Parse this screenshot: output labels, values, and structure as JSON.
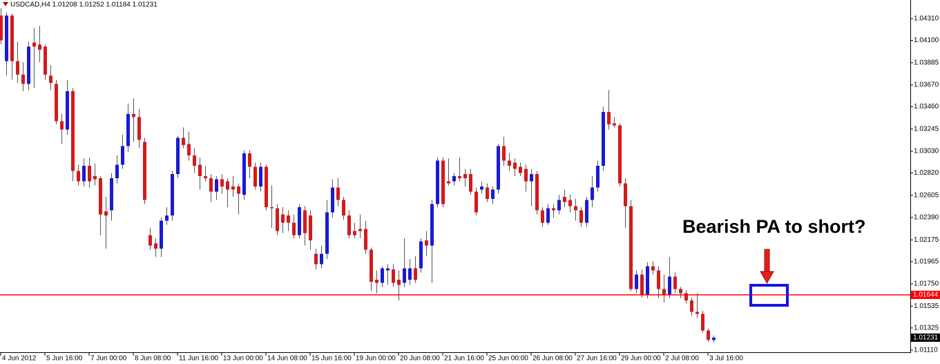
{
  "chart_data": {
    "type": "candlestick",
    "title": "USDCAD,H4  1.01208 1.01252 1.01184 1.01231",
    "annotation": "Bearish PA to short?",
    "up_color": "#1a1ad6",
    "down_color": "#d41a1a",
    "wick_color": "#555555",
    "categories": [
      "4 Jun 2012",
      null,
      null,
      null,
      null,
      null,
      null,
      null,
      "5 Jun 16:00",
      null,
      null,
      null,
      null,
      null,
      null,
      null,
      "7 Jun 00:00",
      null,
      null,
      null,
      null,
      null,
      null,
      null,
      "8 Jun 08:00",
      null,
      null,
      null,
      null,
      null,
      null,
      null,
      "11 Jun 16:00",
      null,
      null,
      null,
      null,
      null,
      null,
      null,
      "13 Jun 00:00",
      null,
      null,
      null,
      null,
      null,
      null,
      null,
      "14 Jun 08:00",
      null,
      null,
      null,
      null,
      null,
      null,
      null,
      "15 Jun 16:00",
      null,
      null,
      null,
      null,
      null,
      null,
      null,
      "19 Jun 00:00",
      null,
      null,
      null,
      null,
      null,
      null,
      null,
      "20 Jun 08:00",
      null,
      null,
      null,
      null,
      null,
      null,
      null,
      "21 Jun 16:00",
      null,
      null,
      null,
      null,
      null,
      null,
      null,
      "25 Jun 00:00",
      null,
      null,
      null,
      null,
      null,
      null,
      null,
      "26 Jun 08:00",
      null,
      null,
      null,
      null,
      null,
      null,
      null,
      "27 Jun 16:00",
      null,
      null,
      null,
      null,
      null,
      null,
      null,
      "29 Jun 00:00",
      null,
      null,
      null,
      null,
      null,
      null,
      null,
      "2 Jul 08:00",
      null,
      null,
      null,
      null,
      null,
      null,
      null,
      "3 Jul 16:00",
      null
    ],
    "open": [
      1.0434,
      1.039,
      1.0434,
      1.039,
      1.0377,
      1.0368,
      1.0408,
      1.0406,
      1.0404,
      1.0376,
      1.0368,
      1.0332,
      1.0324,
      1.0361,
      1.0284,
      1.0274,
      1.0289,
      1.0279,
      1.0277,
      1.0245,
      1.0246,
      1.0277,
      1.029,
      1.0308,
      1.0339,
      1.0336,
      1.0312,
      1.0222,
      1.0214,
      1.0209,
      1.0236,
      1.0241,
      1.0281,
      1.0316,
      1.031,
      1.0299,
      1.029,
      1.0279,
      1.0277,
      1.0264,
      1.0276,
      1.0274,
      1.0269,
      1.0269,
      1.0261,
      1.0301,
      1.0288,
      1.0269,
      1.0288,
      1.0249,
      1.0248,
      1.0242,
      1.0241,
      1.0234,
      1.0222,
      1.0246,
      1.0241,
      1.0204,
      1.0194,
      1.0204,
      1.0244,
      1.0268,
      1.0256,
      1.0241,
      1.0226,
      1.0228,
      1.0228,
      1.0208,
      1.0179,
      1.0176,
      1.0188,
      1.0189,
      1.0179,
      1.0176,
      1.0179,
      1.019,
      1.019,
      1.0217,
      1.0212,
      1.0252,
      1.0294,
      1.0274,
      1.0274,
      1.0279,
      1.0281,
      1.0281,
      1.0264,
      1.0266,
      1.0268,
      1.0257,
      1.0266,
      1.0308,
      1.0294,
      1.0292,
      1.0288,
      1.0286,
      1.0274,
      1.0281,
      1.0246,
      1.0234,
      1.0248,
      1.0246,
      1.0259,
      1.0256,
      1.025,
      1.0246,
      1.0234,
      1.0256,
      1.0268,
      1.0289,
      1.0341,
      1.033,
      1.0328,
      1.0272,
      1.025,
      1.017,
      1.0184,
      1.0164,
      1.0192,
      1.0188,
      1.017,
      1.0164,
      1.0182,
      1.017,
      1.0166,
      1.0159,
      1.0148,
      1.0146,
      1.013,
      1.01208
    ],
    "high": [
      1.0441,
      1.0437,
      1.0436,
      1.0409,
      1.0389,
      1.0409,
      1.0422,
      1.0424,
      1.0406,
      1.0386,
      1.0372,
      1.0339,
      1.0372,
      1.0364,
      1.029,
      1.0296,
      1.0297,
      1.0291,
      1.0279,
      1.0259,
      1.0282,
      1.0299,
      1.0319,
      1.0349,
      1.0354,
      1.0344,
      1.0316,
      1.0229,
      1.0219,
      1.0239,
      1.0249,
      1.0284,
      1.0318,
      1.0326,
      1.0322,
      1.0306,
      1.0297,
      1.0289,
      1.0281,
      1.0279,
      1.0281,
      1.0277,
      1.0279,
      1.0272,
      1.0304,
      1.0304,
      1.0292,
      1.0292,
      1.029,
      1.027,
      1.0252,
      1.0249,
      1.0246,
      1.0242,
      1.0252,
      1.025,
      1.0246,
      1.0209,
      1.0212,
      1.0256,
      1.0276,
      1.0277,
      1.0259,
      1.0246,
      1.0234,
      1.0242,
      1.0236,
      1.021,
      1.0188,
      1.0192,
      1.0194,
      1.0194,
      1.0188,
      1.0219,
      1.0199,
      1.0202,
      1.0219,
      1.0226,
      1.0256,
      1.0297,
      1.0297,
      1.0296,
      1.0282,
      1.0297,
      1.0286,
      1.0286,
      1.0268,
      1.0274,
      1.0272,
      1.0269,
      1.031,
      1.0317,
      1.0301,
      1.0296,
      1.0292,
      1.029,
      1.0286,
      1.0284,
      1.0249,
      1.0252,
      1.0252,
      1.0261,
      1.0266,
      1.0261,
      1.0257,
      1.0249,
      1.0259,
      1.0279,
      1.0294,
      1.0346,
      1.0362,
      1.0336,
      1.033,
      1.0277,
      1.0256,
      1.0188,
      1.0189,
      1.0196,
      1.0197,
      1.0192,
      1.0184,
      1.0201,
      1.0186,
      1.0172,
      1.0169,
      1.0162,
      1.0166,
      1.0149,
      1.0132,
      1.01252
    ],
    "low": [
      1.0406,
      1.0376,
      1.0372,
      1.0369,
      1.0361,
      1.0362,
      1.0364,
      1.0389,
      1.0372,
      1.0362,
      1.0329,
      1.031,
      1.0319,
      1.0274,
      1.027,
      1.0269,
      1.0268,
      1.027,
      1.0222,
      1.0209,
      1.0236,
      1.0272,
      1.0286,
      1.0302,
      1.0312,
      1.0306,
      1.0252,
      1.0208,
      1.0201,
      1.0201,
      1.0232,
      1.0236,
      1.0277,
      1.0306,
      1.0294,
      1.0282,
      1.0266,
      1.0274,
      1.0254,
      1.0256,
      1.0262,
      1.0249,
      1.0259,
      1.0242,
      1.0256,
      1.0277,
      1.0266,
      1.0264,
      1.0246,
      1.0229,
      1.0222,
      1.0224,
      1.0226,
      1.0219,
      1.0219,
      1.0212,
      1.0208,
      1.0189,
      1.019,
      1.0199,
      1.0239,
      1.025,
      1.0237,
      1.0219,
      1.0219,
      1.0219,
      1.0204,
      1.0168,
      1.0166,
      1.0172,
      1.0174,
      1.0172,
      1.0159,
      1.0172,
      1.0174,
      1.0176,
      1.0186,
      1.0202,
      1.0176,
      1.0249,
      1.0249,
      1.027,
      1.027,
      1.0274,
      1.0269,
      1.0261,
      1.0241,
      1.0262,
      1.0254,
      1.0252,
      1.0262,
      1.0289,
      1.0284,
      1.0279,
      1.0279,
      1.0264,
      1.025,
      1.0242,
      1.023,
      1.0232,
      1.0239,
      1.0242,
      1.0249,
      1.0244,
      1.0236,
      1.023,
      1.023,
      1.0249,
      1.0264,
      1.0284,
      1.0324,
      1.0326,
      1.0269,
      1.0229,
      1.0168,
      1.0166,
      1.0162,
      1.0161,
      1.0184,
      1.0161,
      1.0157,
      1.0161,
      1.0166,
      1.0161,
      1.0156,
      1.0144,
      1.0142,
      1.0128,
      1.0119,
      1.01184
    ],
    "close": [
      1.041,
      1.0434,
      1.039,
      1.0377,
      1.0368,
      1.0404,
      1.0404,
      1.0401,
      1.0377,
      1.0369,
      1.0332,
      1.0324,
      1.0361,
      1.0284,
      1.0274,
      1.0289,
      1.0274,
      1.0276,
      1.0242,
      1.0241,
      1.0277,
      1.029,
      1.0308,
      1.0339,
      1.0336,
      1.0314,
      1.0256,
      1.0212,
      1.0209,
      1.0236,
      1.0241,
      1.0281,
      1.0316,
      1.0309,
      1.0299,
      1.0289,
      1.0279,
      1.0277,
      1.0264,
      1.0276,
      1.0269,
      1.0266,
      1.0266,
      1.0262,
      1.0301,
      1.0288,
      1.0269,
      1.0288,
      1.0249,
      1.0248,
      1.0226,
      1.0234,
      1.0234,
      1.0222,
      1.0249,
      1.0224,
      1.0217,
      1.0194,
      1.0204,
      1.0244,
      1.0268,
      1.0256,
      1.0241,
      1.0222,
      1.0222,
      1.0226,
      1.0208,
      1.0177,
      1.0176,
      1.019,
      1.019,
      1.0176,
      1.0174,
      1.019,
      1.019,
      1.0179,
      1.0216,
      1.0212,
      1.0252,
      1.0294,
      1.0252,
      1.0272,
      1.0279,
      1.0277,
      1.0277,
      1.0264,
      1.0244,
      1.0269,
      1.0257,
      1.0266,
      1.0308,
      1.0294,
      1.0289,
      1.0286,
      1.0282,
      1.0274,
      1.0281,
      1.0246,
      1.0234,
      1.0248,
      1.0246,
      1.0256,
      1.0254,
      1.025,
      1.0246,
      1.0234,
      1.0256,
      1.0268,
      1.0289,
      1.0341,
      1.0329,
      1.0328,
      1.0272,
      1.025,
      1.017,
      1.0184,
      1.0164,
      1.0192,
      1.0188,
      1.017,
      1.0164,
      1.0182,
      1.017,
      1.0166,
      1.0159,
      1.0148,
      1.0146,
      1.013,
      1.0121,
      1.01231
    ],
    "ylim": [
      1.0109,
      1.0449
    ],
    "yticks": [
      {
        "value": 1.0431,
        "label": "1.04310"
      },
      {
        "value": 1.041,
        "label": "1.04100"
      },
      {
        "value": 1.03885,
        "label": "1.03885"
      },
      {
        "value": 1.0367,
        "label": "1.03670"
      },
      {
        "value": 1.0346,
        "label": "1.03460"
      },
      {
        "value": 1.03245,
        "label": "1.03245"
      },
      {
        "value": 1.0303,
        "label": "1.03030"
      },
      {
        "value": 1.0282,
        "label": "1.02820"
      },
      {
        "value": 1.02605,
        "label": "1.02605"
      },
      {
        "value": 1.0239,
        "label": "1.02390"
      },
      {
        "value": 1.02175,
        "label": "1.02175"
      },
      {
        "value": 1.01965,
        "label": "1.01965"
      },
      {
        "value": 1.0175,
        "label": "1.01750"
      },
      {
        "value": 1.01535,
        "label": "1.01535"
      },
      {
        "value": 1.01325,
        "label": "1.01325"
      },
      {
        "value": 1.0111,
        "label": "1.01110"
      }
    ],
    "hline": {
      "value": 1.01644,
      "color": "#ff0000"
    }
  }
}
